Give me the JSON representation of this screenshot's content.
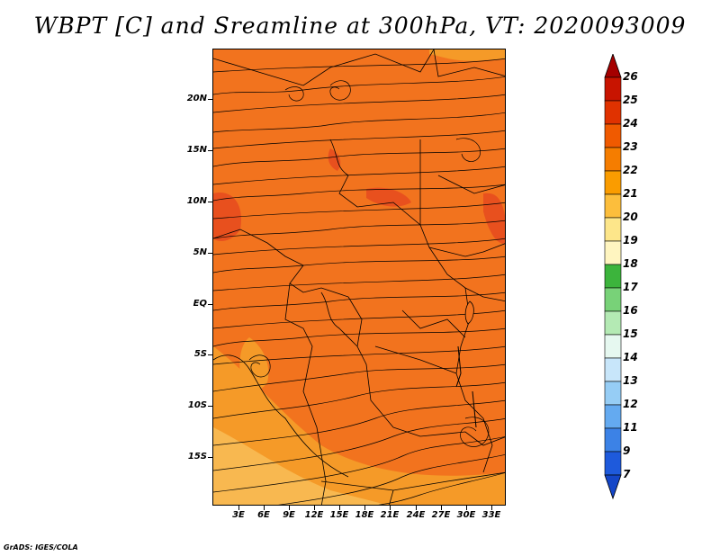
{
  "title": "WBPT [C] and Sreamline at 300hPa, VT: 2020093009",
  "credit": "GrADS: IGES/COLA",
  "lat_labels": [
    "20N",
    "15N",
    "10N",
    "5N",
    "EQ",
    "5S",
    "10S",
    "15S"
  ],
  "lon_labels": [
    "3E",
    "6E",
    "9E",
    "12E",
    "15E",
    "18E",
    "21E",
    "24E",
    "27E",
    "30E",
    "33E"
  ],
  "colorbar": {
    "levels": [
      "26",
      "25",
      "24",
      "23",
      "22",
      "21",
      "20",
      "19",
      "18",
      "17",
      "16",
      "15",
      "14",
      "13",
      "12",
      "11",
      "9",
      "7"
    ],
    "colors": [
      "#a50000",
      "#c81400",
      "#e03200",
      "#f05a00",
      "#f57d00",
      "#fa9c00",
      "#fcbe3c",
      "#fde68a",
      "#fff5c0",
      "#3cb43c",
      "#78d278",
      "#b4eab4",
      "#e6f8f0",
      "#c8e6fa",
      "#96cdf5",
      "#64aaf0",
      "#3c82e6",
      "#1e5adc",
      "#1446c8"
    ]
  },
  "field_colors": {
    "base": "#f2731e",
    "warm": "#e8501e",
    "cool": "#f59a28",
    "coolest": "#f8b850"
  }
}
